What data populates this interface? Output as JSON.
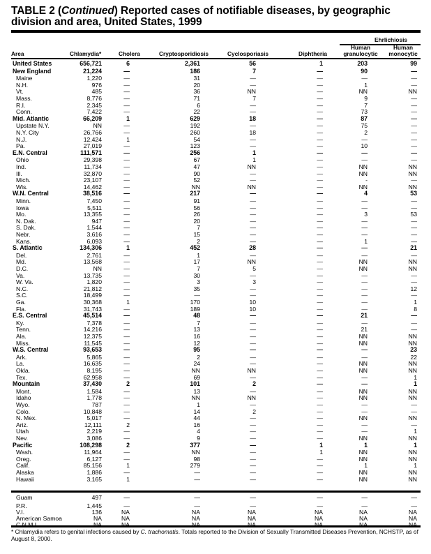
{
  "title": {
    "prefix": "TABLE 2 (",
    "italic": "Continued",
    "suffix": ")  Reported cases of notifiable diseases, by geographic division and area, United States, 1999"
  },
  "header": {
    "group": "Ehrlichiosis",
    "columns": [
      "Area",
      "Chlamydia*",
      "Cholera",
      "Cryptosporidiosis",
      "Cyclosporiasis",
      "Diphtheria",
      "Human granulocytic",
      "Human monocytic"
    ]
  },
  "rows": [
    {
      "area": "United States",
      "bold": true,
      "values": [
        "656,721",
        "6",
        "2,361",
        "56",
        "1",
        "203",
        "99"
      ]
    },
    {
      "area": "New England",
      "bold": true,
      "values": [
        "21,224",
        "—",
        "186",
        "7",
        "—",
        "90",
        "—"
      ]
    },
    {
      "area": "Maine",
      "values": [
        "1,220",
        "—",
        "31",
        "—",
        "—",
        "—",
        "—"
      ]
    },
    {
      "area": "N.H.",
      "values": [
        "976",
        "—",
        "20",
        "—",
        "—",
        "1",
        "—"
      ]
    },
    {
      "area": "Vt.",
      "values": [
        "485",
        "—",
        "36",
        "NN",
        "—",
        "NN",
        "NN"
      ]
    },
    {
      "area": "Mass.",
      "values": [
        "8,776",
        "—",
        "71",
        "7",
        "—",
        "9",
        "—"
      ]
    },
    {
      "area": "R.I.",
      "values": [
        "2,345",
        "—",
        "6",
        "—",
        "—",
        "7",
        "—"
      ]
    },
    {
      "area": "Conn.",
      "values": [
        "7,422",
        "—",
        "22",
        "—",
        "—",
        "73",
        "—"
      ]
    },
    {
      "area": "Mid. Atlantic",
      "bold": true,
      "values": [
        "66,209",
        "1",
        "629",
        "18",
        "—",
        "87",
        "—"
      ]
    },
    {
      "area": "Upstate N.Y.",
      "values": [
        "NN",
        "—",
        "192",
        "—",
        "—",
        "75",
        "—"
      ]
    },
    {
      "area": "N.Y. City",
      "values": [
        "26,766",
        "—",
        "260",
        "18",
        "—",
        "2",
        "—"
      ]
    },
    {
      "area": "N.J.",
      "values": [
        "12,424",
        "1",
        "54",
        "—",
        "—",
        "—",
        "—"
      ]
    },
    {
      "area": "Pa.",
      "values": [
        "27,019",
        "—",
        "123",
        "—",
        "—",
        "10",
        "—"
      ]
    },
    {
      "area": "E.N. Central",
      "bold": true,
      "values": [
        "111,571",
        "—",
        "256",
        "1",
        "—",
        "—",
        "—"
      ]
    },
    {
      "area": "Ohio",
      "values": [
        "29,398",
        "—",
        "67",
        "1",
        "—",
        "—",
        "—"
      ]
    },
    {
      "area": "Ind.",
      "values": [
        "11,734",
        "—",
        "47",
        "NN",
        "—",
        "NN",
        "NN"
      ]
    },
    {
      "area": "Ill.",
      "values": [
        "32,870",
        "—",
        "90",
        "—",
        "—",
        "NN",
        "NN"
      ]
    },
    {
      "area": "Mich.",
      "values": [
        "23,107",
        "—",
        "52",
        "—",
        "—",
        "-",
        "—"
      ]
    },
    {
      "area": "Wis.",
      "values": [
        "14,462",
        "—",
        "NN",
        "NN",
        "—",
        "NN",
        "NN"
      ]
    },
    {
      "area": "W.N. Central",
      "bold": true,
      "values": [
        "38,516",
        "—",
        "217",
        "—",
        "—",
        "4",
        "53"
      ]
    },
    {
      "area": "Minn.",
      "values": [
        "7,450",
        "—",
        "91",
        "—",
        "—",
        "—",
        "—"
      ]
    },
    {
      "area": "Iowa",
      "values": [
        "5,511",
        "—",
        "56",
        "—",
        "—",
        "—",
        "—"
      ]
    },
    {
      "area": "Mo.",
      "values": [
        "13,355",
        "—",
        "26",
        "—",
        "—",
        "3",
        "53"
      ]
    },
    {
      "area": "N. Dak.",
      "values": [
        "947",
        "—",
        "20",
        "—",
        "—",
        "—",
        "—"
      ]
    },
    {
      "area": "S. Dak.",
      "values": [
        "1,544",
        "—",
        "7",
        "—",
        "—",
        "—",
        "—"
      ]
    },
    {
      "area": "Nebr.",
      "values": [
        "3,616",
        "—",
        "15",
        "—",
        "—",
        "—",
        "—"
      ]
    },
    {
      "area": "Kans.",
      "values": [
        "6,093",
        "—",
        "2",
        "—",
        "—",
        "1",
        "—"
      ]
    },
    {
      "area": "S. Atlantic",
      "bold": true,
      "values": [
        "134,306",
        "1",
        "452",
        "28",
        "—",
        "—",
        "21"
      ]
    },
    {
      "area": "Del.",
      "values": [
        "2,761",
        "—",
        "1",
        "—",
        "—",
        "—",
        "—"
      ]
    },
    {
      "area": "Md.",
      "values": [
        "13,568",
        "—",
        "17",
        "NN",
        "—",
        "NN",
        "NN"
      ]
    },
    {
      "area": "D.C.",
      "values": [
        "NN",
        "—",
        "7",
        "5",
        "—",
        "NN",
        "NN"
      ]
    },
    {
      "area": "Va.",
      "values": [
        "13,735",
        "—",
        "30",
        "—",
        "—",
        "—",
        "—"
      ]
    },
    {
      "area": "W. Va.",
      "values": [
        "1,820",
        "—",
        "3",
        "3",
        "—",
        "—",
        "—"
      ]
    },
    {
      "area": "N.C.",
      "values": [
        "21,812",
        "—",
        "35",
        "—",
        "—",
        "—",
        "12"
      ]
    },
    {
      "area": "S.C.",
      "values": [
        "18,499",
        "—",
        "—",
        "—",
        "—",
        "—",
        "—"
      ]
    },
    {
      "area": "Ga.",
      "values": [
        "30,368",
        "1",
        "170",
        "10",
        "—",
        "—",
        "1"
      ]
    },
    {
      "area": "Fla.",
      "values": [
        "31,743",
        "—",
        "189",
        "10",
        "—",
        "—",
        "8"
      ]
    },
    {
      "area": "E.S. Central",
      "bold": true,
      "values": [
        "45,514",
        "—",
        "48",
        "—",
        "—",
        "21",
        "—"
      ]
    },
    {
      "area": "Ky.",
      "values": [
        "7,378",
        "—",
        "7",
        "—",
        "—",
        "—",
        "—"
      ]
    },
    {
      "area": "Tenn.",
      "values": [
        "14,216",
        "—",
        "13",
        "—",
        "—",
        "21",
        "—"
      ]
    },
    {
      "area": "Ala.",
      "values": [
        "12,375",
        "—",
        "16",
        "—",
        "—",
        "NN",
        "NN"
      ]
    },
    {
      "area": "Miss.",
      "values": [
        "11,545",
        "—",
        "12",
        "—",
        "—",
        "NN",
        "NN"
      ]
    },
    {
      "area": "W.S. Central",
      "bold": true,
      "values": [
        "93,653",
        "—",
        "95",
        "—",
        "—",
        "—",
        "23"
      ]
    },
    {
      "area": "Ark.",
      "values": [
        "5,865",
        "—",
        "2",
        "—",
        "—",
        "—",
        "22"
      ]
    },
    {
      "area": "La.",
      "values": [
        "16,635",
        "—",
        "24",
        "—",
        "—",
        "NN",
        "NN"
      ]
    },
    {
      "area": "Okla.",
      "values": [
        "8,195",
        "—",
        "NN",
        "NN",
        "—",
        "NN",
        "NN"
      ]
    },
    {
      "area": "Tex.",
      "values": [
        "62,958",
        "—",
        "69",
        "—",
        "—",
        "—",
        "1"
      ]
    },
    {
      "area": "Mountain",
      "bold": true,
      "values": [
        "37,430",
        "2",
        "101",
        "2",
        "—",
        "—",
        "1"
      ]
    },
    {
      "area": "Mont.",
      "values": [
        "1,584",
        "—",
        "13",
        "—",
        "—",
        "NN",
        "NN"
      ]
    },
    {
      "area": "Idaho",
      "values": [
        "1,778",
        "—",
        "NN",
        "NN",
        "—",
        "NN",
        "NN"
      ]
    },
    {
      "area": "Wyo.",
      "values": [
        "787",
        "—",
        "1",
        "—",
        "—",
        "—",
        "—"
      ]
    },
    {
      "area": "Colo.",
      "values": [
        "10,848",
        "—",
        "14",
        "2",
        "—",
        "—",
        "—"
      ]
    },
    {
      "area": "N. Mex.",
      "values": [
        "5,017",
        "—",
        "44",
        "—",
        "—",
        "NN",
        "NN"
      ]
    },
    {
      "area": "Ariz.",
      "values": [
        "12,111",
        "2",
        "16",
        "—",
        "—",
        "—",
        "—"
      ]
    },
    {
      "area": "Utah",
      "values": [
        "2,219",
        "—",
        "4",
        "—",
        "—",
        "—",
        "1"
      ]
    },
    {
      "area": "Nev.",
      "values": [
        "3,086",
        "—",
        "9",
        "—",
        "—",
        "NN",
        "NN"
      ]
    },
    {
      "area": "Pacific",
      "bold": true,
      "values": [
        "108,298",
        "2",
        "377",
        "—",
        "1",
        "1",
        "1"
      ]
    },
    {
      "area": "Wash.",
      "values": [
        "11,964",
        "—",
        "NN",
        "—",
        "1",
        "NN",
        "NN"
      ]
    },
    {
      "area": "Oreg.",
      "values": [
        "6,127",
        "—",
        "98",
        "—",
        "—",
        "NN",
        "NN"
      ]
    },
    {
      "area": "Calif.",
      "values": [
        "85,156",
        "1",
        "279",
        "—",
        "—",
        "1",
        "1"
      ]
    },
    {
      "area": "Alaska",
      "values": [
        "1,886",
        "—",
        "—",
        "—",
        "—",
        "NN",
        "NN"
      ]
    },
    {
      "area": "Hawaii",
      "values": [
        "3,165",
        "1",
        "—",
        "—",
        "—",
        "NN",
        "NN"
      ]
    }
  ],
  "territories": [
    {
      "area": "Guam",
      "values": [
        "497",
        "—",
        "—",
        "—",
        "—",
        "—",
        "—"
      ]
    },
    {
      "area": "P.R.",
      "values": [
        "1,445",
        "—",
        "—",
        "—",
        "—",
        "—",
        "—"
      ]
    },
    {
      "area": "V.I.",
      "values": [
        "136",
        "NA",
        "NA",
        "NA",
        "NA",
        "NA",
        "NA"
      ]
    },
    {
      "area": "American Samoa",
      "values": [
        "NA",
        "NA",
        "NA",
        "NA",
        "NA",
        "NA",
        "NA"
      ]
    },
    {
      "area": "C.N.M.I.",
      "values": [
        "NA",
        "NA",
        "NA",
        "NA",
        "NA",
        "NA",
        "NA"
      ]
    }
  ],
  "footnote": {
    "prefix": "* Chlamydia refers to genital infections caused by ",
    "italic": "C. trachomatis",
    "suffix": ". Totals reported to the Division of Sexually Transmitted Diseases Prevention, NCHSTP, as of August 8, 2000."
  }
}
